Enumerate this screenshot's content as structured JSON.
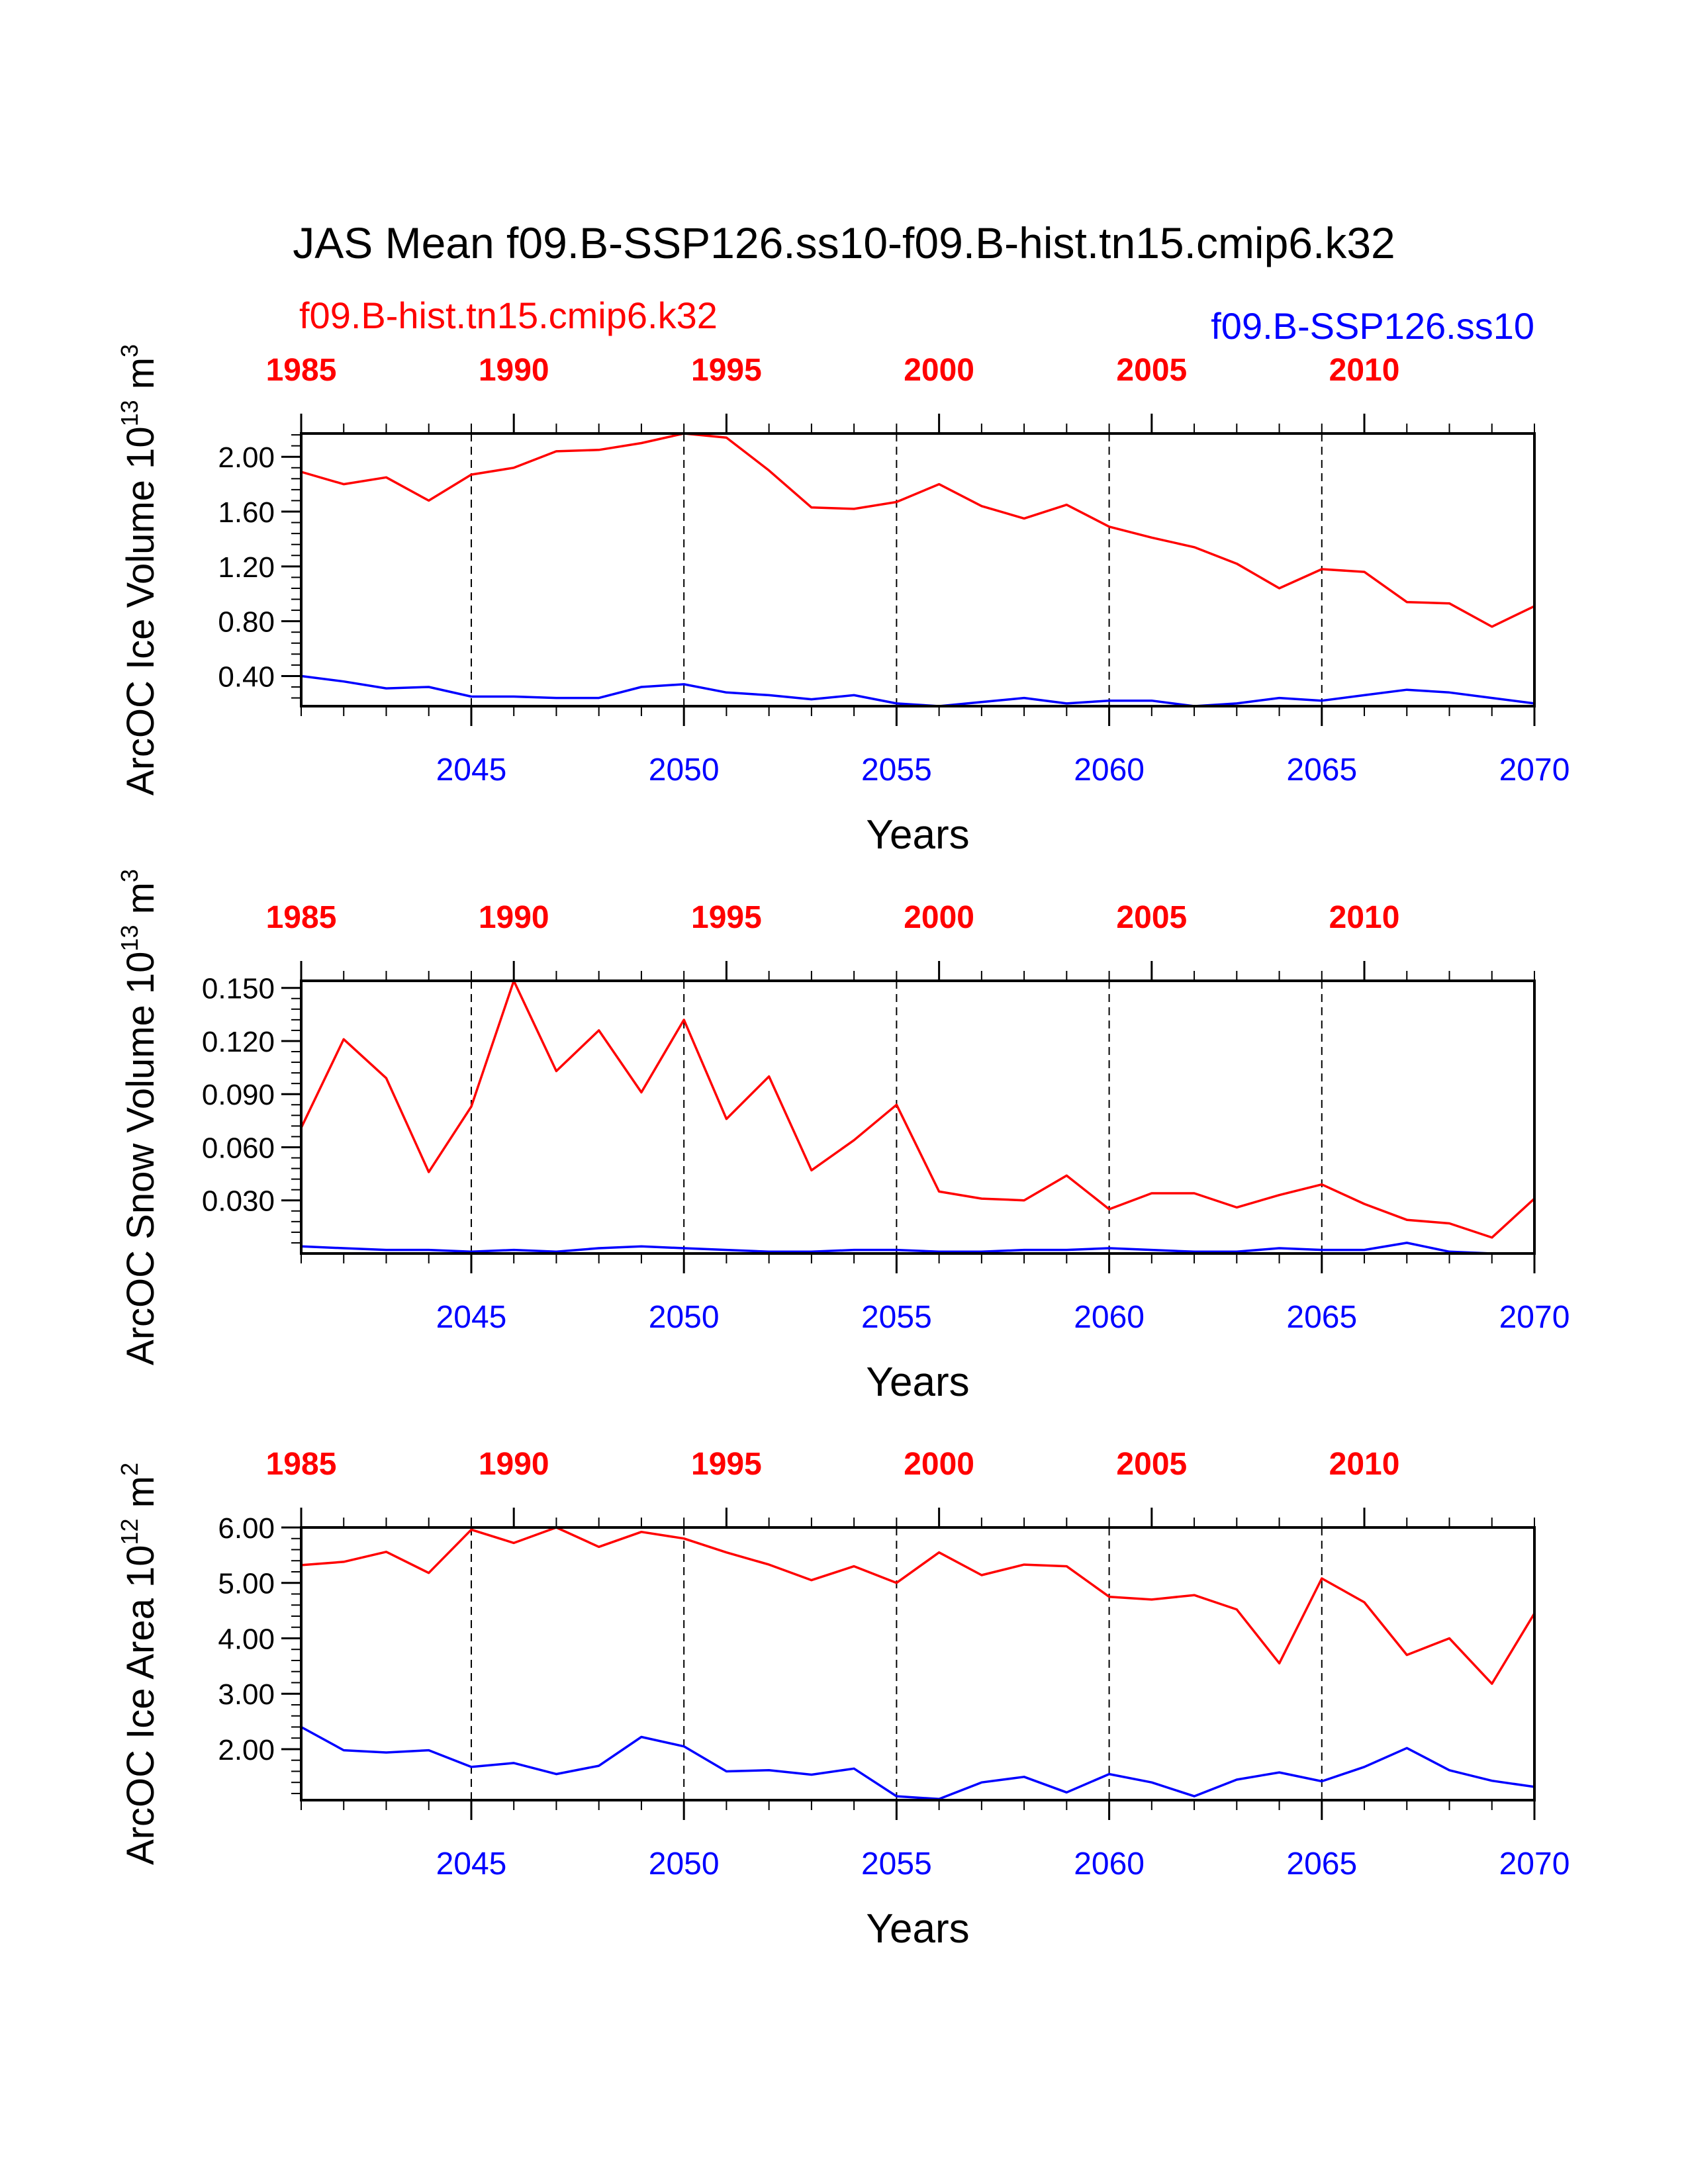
{
  "title": "JAS Mean f09.B-SSP126.ss10-f09.B-hist.tn15.cmip6.k32",
  "colors": {
    "hist": "#ff0000",
    "ssp": "#0000ff",
    "axis": "#000000"
  },
  "legend": {
    "left": "f09.B-hist.tn15.cmip6.k32",
    "right": "f09.B-SSP126.ss10"
  },
  "chart_data": [
    {
      "type": "line",
      "ylabel": "ArcOC Ice Volume 10",
      "ylabel_exp": "13",
      "ylabel_unit": " m",
      "ylabel_unit_exp": "3",
      "xlabel": "Years",
      "ylim": [
        0.18,
        2.17
      ],
      "yticks": [
        0.4,
        0.8,
        1.2,
        1.6,
        2.0
      ],
      "ytick_labels": [
        "0.40",
        "0.80",
        "1.20",
        "1.60",
        "2.00"
      ],
      "yminor_step": 0.08,
      "bottom_axis": {
        "range": [
          2041,
          2070
        ],
        "ticks": [
          2045,
          2050,
          2055,
          2060,
          2065,
          2070
        ],
        "labels": [
          "2045",
          "2050",
          "2055",
          "2060",
          "2065",
          "2070"
        ]
      },
      "top_axis": {
        "range": [
          1985,
          2014
        ],
        "ticks": [
          1985,
          1990,
          1995,
          2000,
          2005,
          2010
        ],
        "labels": [
          "1985",
          "1990",
          "1995",
          "2000",
          "2005",
          "2010"
        ]
      },
      "grid_x": [
        2045,
        2050,
        2055,
        2060,
        2065
      ],
      "series": [
        {
          "name": "f09.B-hist.tn15.cmip6.k32",
          "axis": "top",
          "color": "#ff0000",
          "x": [
            1985,
            1986,
            1987,
            1988,
            1989,
            1990,
            1991,
            1992,
            1993,
            1994,
            1995,
            1996,
            1997,
            1998,
            1999,
            2000,
            2001,
            2002,
            2003,
            2004,
            2005,
            2006,
            2007,
            2008,
            2009,
            2010,
            2011,
            2012,
            2013,
            2014
          ],
          "y": [
            1.89,
            1.8,
            1.85,
            1.68,
            1.87,
            1.92,
            2.04,
            2.05,
            2.1,
            2.17,
            2.14,
            1.9,
            1.63,
            1.62,
            1.67,
            1.8,
            1.64,
            1.55,
            1.65,
            1.49,
            1.41,
            1.34,
            1.22,
            1.04,
            1.18,
            1.16,
            0.94,
            0.93,
            0.76,
            0.91
          ]
        },
        {
          "name": "f09.B-SSP126.ss10",
          "axis": "bottom",
          "color": "#0000ff",
          "x": [
            2041,
            2042,
            2043,
            2044,
            2045,
            2046,
            2047,
            2048,
            2049,
            2050,
            2051,
            2052,
            2053,
            2054,
            2055,
            2056,
            2057,
            2058,
            2059,
            2060,
            2061,
            2062,
            2063,
            2064,
            2065,
            2066,
            2067,
            2068,
            2069,
            2070
          ],
          "y": [
            0.4,
            0.36,
            0.31,
            0.32,
            0.25,
            0.25,
            0.24,
            0.24,
            0.32,
            0.34,
            0.28,
            0.26,
            0.23,
            0.26,
            0.2,
            0.18,
            0.21,
            0.24,
            0.2,
            0.22,
            0.22,
            0.18,
            0.2,
            0.24,
            0.22,
            0.26,
            0.3,
            0.28,
            0.24,
            0.2
          ]
        }
      ]
    },
    {
      "type": "line",
      "ylabel": "ArcOC Snow Volume 10",
      "ylabel_exp": "13",
      "ylabel_unit": " m",
      "ylabel_unit_exp": "3",
      "xlabel": "Years",
      "ylim": [
        0.0,
        0.154
      ],
      "yticks": [
        0.03,
        0.06,
        0.09,
        0.12,
        0.15
      ],
      "ytick_labels": [
        "0.030",
        "0.060",
        "0.090",
        "0.120",
        "0.150"
      ],
      "yminor_step": 0.006,
      "bottom_axis": {
        "range": [
          2041,
          2070
        ],
        "ticks": [
          2045,
          2050,
          2055,
          2060,
          2065,
          2070
        ],
        "labels": [
          "2045",
          "2050",
          "2055",
          "2060",
          "2065",
          "2070"
        ]
      },
      "top_axis": {
        "range": [
          1985,
          2014
        ],
        "ticks": [
          1985,
          1990,
          1995,
          2000,
          2005,
          2010
        ],
        "labels": [
          "1985",
          "1990",
          "1995",
          "2000",
          "2005",
          "2010"
        ]
      },
      "grid_x": [
        2045,
        2050,
        2055,
        2060,
        2065
      ],
      "series": [
        {
          "name": "f09.B-hist.tn15.cmip6.k32",
          "axis": "top",
          "color": "#ff0000",
          "x": [
            1985,
            1986,
            1987,
            1988,
            1989,
            1990,
            1991,
            1992,
            1993,
            1994,
            1995,
            1996,
            1997,
            1998,
            1999,
            2000,
            2001,
            2002,
            2003,
            2004,
            2005,
            2006,
            2007,
            2008,
            2009,
            2010,
            2011,
            2012,
            2013,
            2014
          ],
          "y": [
            0.071,
            0.121,
            0.099,
            0.046,
            0.083,
            0.154,
            0.103,
            0.126,
            0.091,
            0.132,
            0.076,
            0.1,
            0.047,
            0.064,
            0.084,
            0.035,
            0.031,
            0.03,
            0.044,
            0.025,
            0.034,
            0.034,
            0.026,
            0.033,
            0.039,
            0.028,
            0.019,
            0.017,
            0.009,
            0.031
          ]
        },
        {
          "name": "f09.B-SSP126.ss10",
          "axis": "bottom",
          "color": "#0000ff",
          "x": [
            2041,
            2042,
            2043,
            2044,
            2045,
            2046,
            2047,
            2048,
            2049,
            2050,
            2051,
            2052,
            2053,
            2054,
            2055,
            2056,
            2057,
            2058,
            2059,
            2060,
            2061,
            2062,
            2063,
            2064,
            2065,
            2066,
            2067,
            2068,
            2069,
            2070
          ],
          "y": [
            0.004,
            0.003,
            0.002,
            0.002,
            0.001,
            0.002,
            0.001,
            0.003,
            0.004,
            0.003,
            0.002,
            0.001,
            0.001,
            0.002,
            0.002,
            0.001,
            0.001,
            0.002,
            0.002,
            0.003,
            0.002,
            0.001,
            0.001,
            0.003,
            0.002,
            0.002,
            0.006,
            0.001,
            0.0,
            0.0
          ]
        }
      ]
    },
    {
      "type": "line",
      "ylabel": "ArcOC Ice Area 10",
      "ylabel_exp": "12",
      "ylabel_unit": " m",
      "ylabel_unit_exp": "2",
      "xlabel": "Years",
      "ylim": [
        1.08,
        6.0
      ],
      "yticks": [
        2.0,
        3.0,
        4.0,
        5.0,
        6.0
      ],
      "ytick_labels": [
        "2.00",
        "3.00",
        "4.00",
        "5.00",
        "6.00"
      ],
      "yminor_step": 0.2,
      "bottom_axis": {
        "range": [
          2041,
          2070
        ],
        "ticks": [
          2045,
          2050,
          2055,
          2060,
          2065,
          2070
        ],
        "labels": [
          "2045",
          "2050",
          "2055",
          "2060",
          "2065",
          "2070"
        ]
      },
      "top_axis": {
        "range": [
          1985,
          2014
        ],
        "ticks": [
          1985,
          1990,
          1995,
          2000,
          2005,
          2010
        ],
        "labels": [
          "1985",
          "1990",
          "1995",
          "2000",
          "2005",
          "2010"
        ]
      },
      "grid_x": [
        2045,
        2050,
        2055,
        2060,
        2065
      ],
      "series": [
        {
          "name": "f09.B-hist.tn15.cmip6.k32",
          "axis": "top",
          "color": "#ff0000",
          "x": [
            1985,
            1986,
            1987,
            1988,
            1989,
            1990,
            1991,
            1992,
            1993,
            1994,
            1995,
            1996,
            1997,
            1998,
            1999,
            2000,
            2001,
            2002,
            2003,
            2004,
            2005,
            2006,
            2007,
            2008,
            2009,
            2010,
            2011,
            2012,
            2013,
            2014
          ],
          "y": [
            5.32,
            5.38,
            5.56,
            5.18,
            5.96,
            5.72,
            6.0,
            5.65,
            5.92,
            5.8,
            5.55,
            5.33,
            5.05,
            5.3,
            5.0,
            5.55,
            5.14,
            5.33,
            5.3,
            4.75,
            4.7,
            4.78,
            4.52,
            3.55,
            5.08,
            4.65,
            3.7,
            4.0,
            3.18,
            4.45
          ]
        },
        {
          "name": "f09.B-SSP126.ss10",
          "axis": "bottom",
          "color": "#0000ff",
          "x": [
            2041,
            2042,
            2043,
            2044,
            2045,
            2046,
            2047,
            2048,
            2049,
            2050,
            2051,
            2052,
            2053,
            2054,
            2055,
            2056,
            2057,
            2058,
            2059,
            2060,
            2061,
            2062,
            2063,
            2064,
            2065,
            2066,
            2067,
            2068,
            2069,
            2070
          ],
          "y": [
            2.4,
            1.98,
            1.94,
            1.98,
            1.68,
            1.75,
            1.55,
            1.7,
            2.22,
            2.05,
            1.6,
            1.62,
            1.54,
            1.65,
            1.15,
            1.1,
            1.4,
            1.5,
            1.22,
            1.55,
            1.4,
            1.15,
            1.45,
            1.58,
            1.42,
            1.68,
            2.02,
            1.62,
            1.43,
            1.32
          ]
        }
      ]
    }
  ]
}
